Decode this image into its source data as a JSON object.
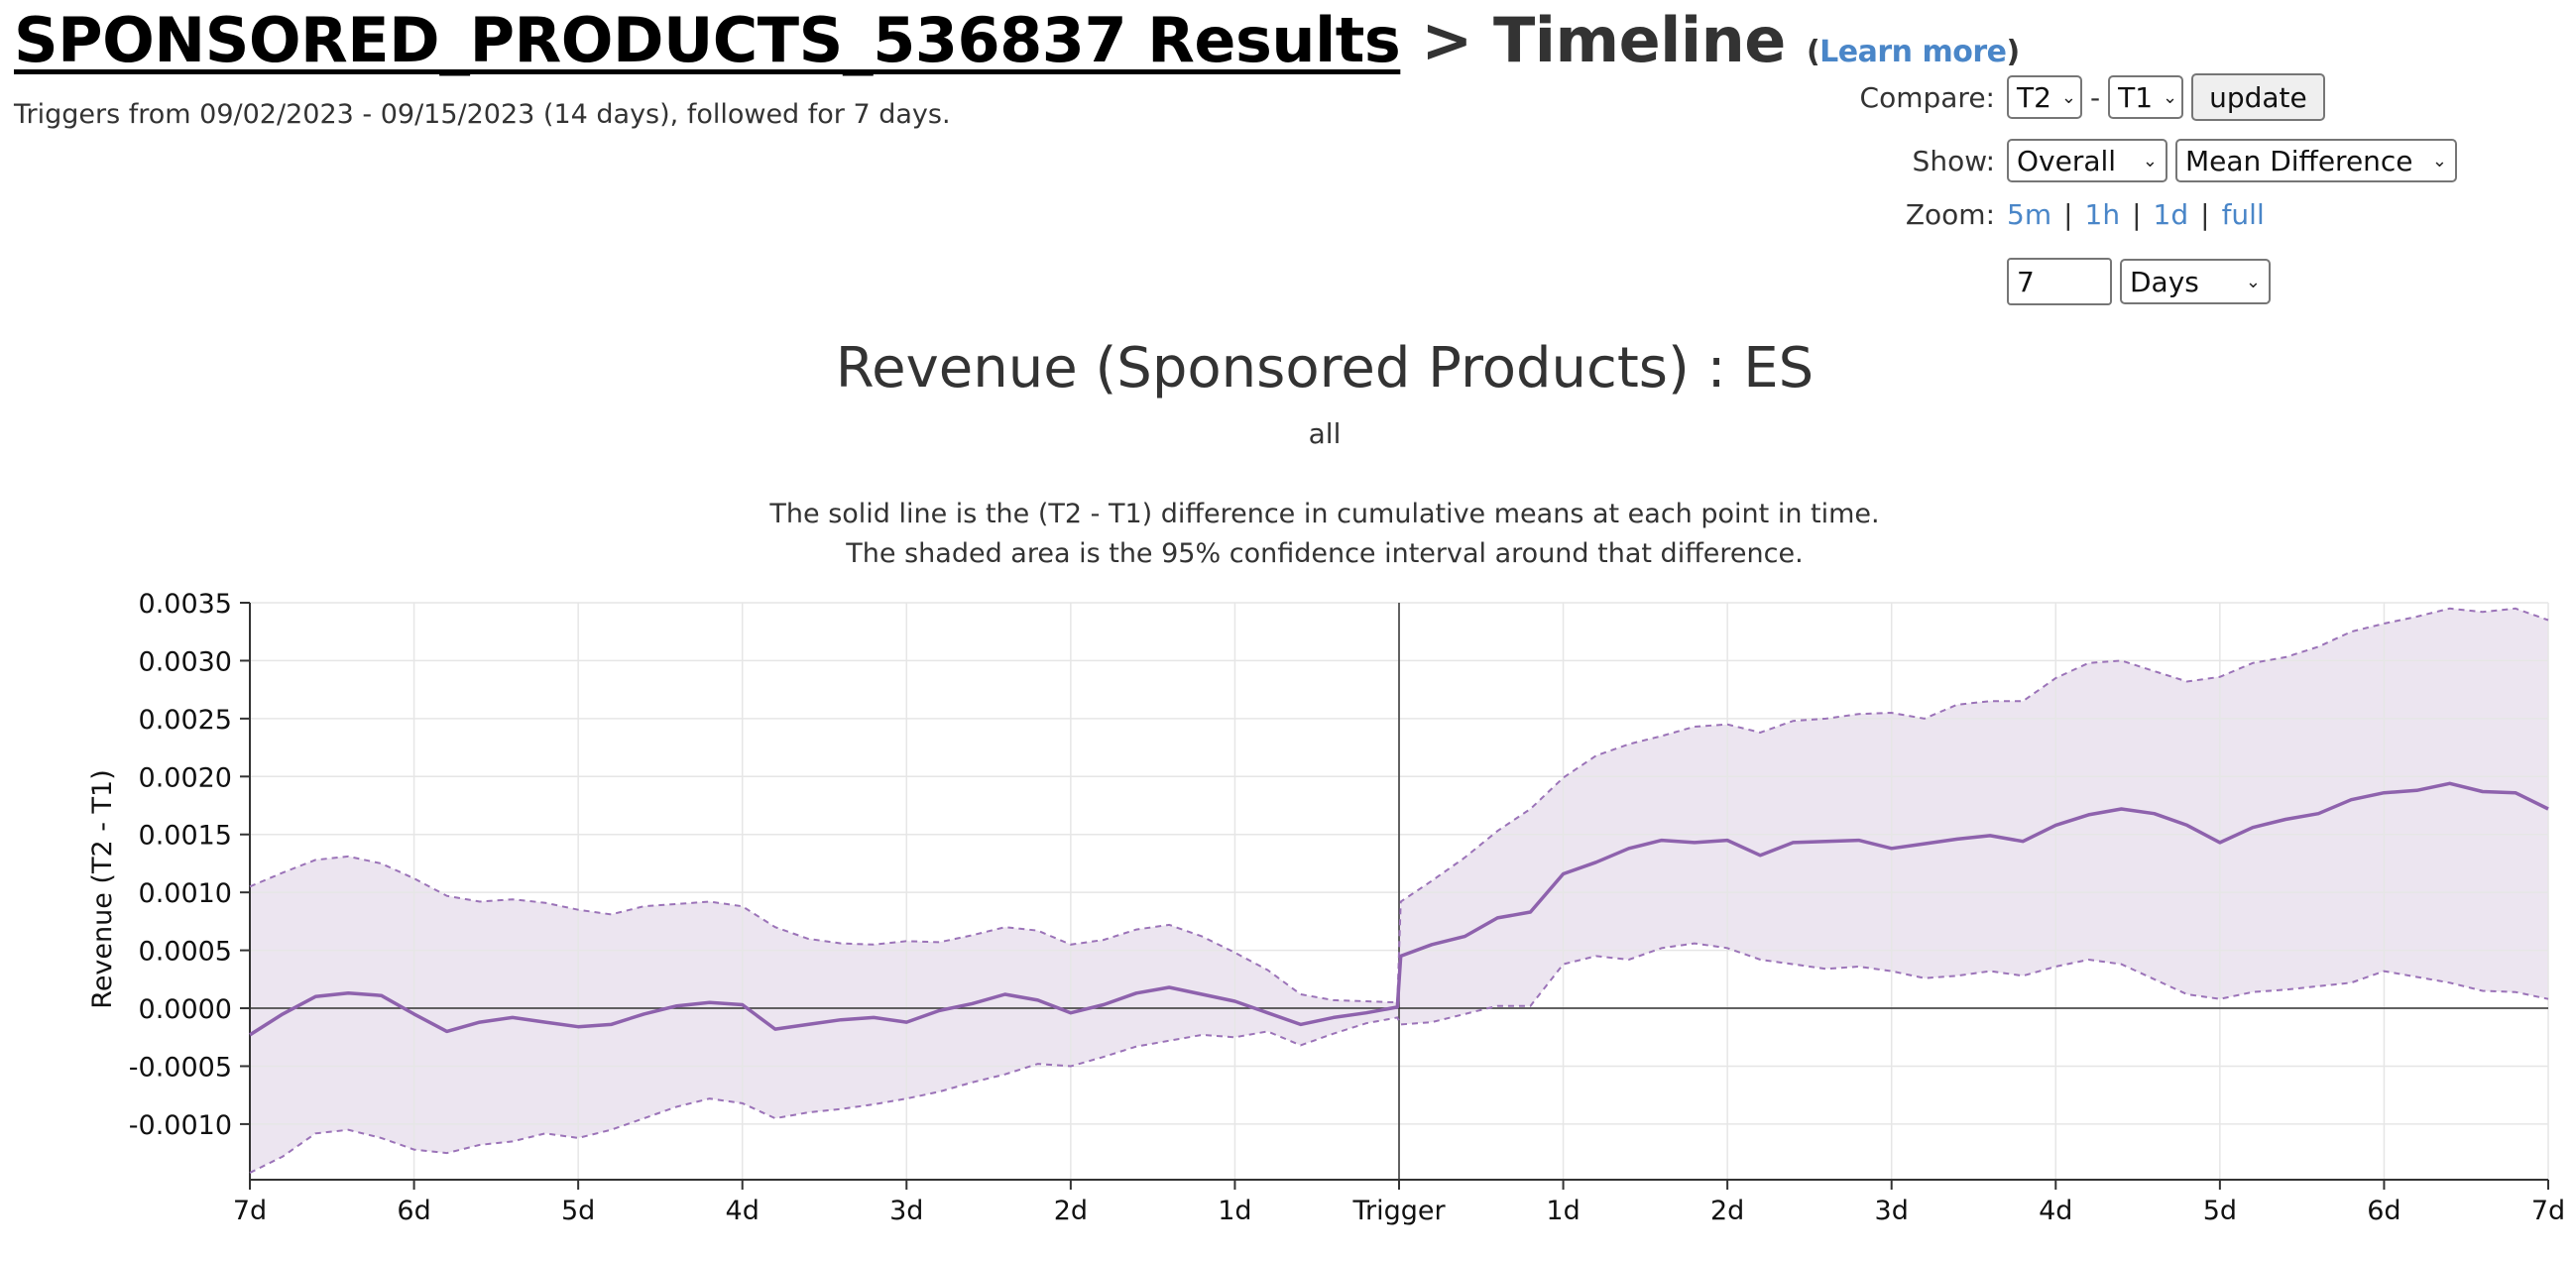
{
  "header": {
    "report_name": "SPONSORED_PRODUCTS_536837 Results",
    "separator": ">",
    "section": "Timeline",
    "learn_more_open": "(",
    "learn_more": "Learn more",
    "learn_more_close": ")",
    "subtitle": "Triggers from 09/02/2023 - 09/15/2023 (14 days), followed for 7 days."
  },
  "controls": {
    "compare_label": "Compare:",
    "compare_a": "T2",
    "compare_dash": "-",
    "compare_b": "T1",
    "update_button": "update",
    "show_label": "Show:",
    "show_scope": "Overall",
    "show_metric": "Mean Difference",
    "zoom_label": "Zoom:",
    "zoom_links": [
      "5m",
      "1h",
      "1d",
      "full"
    ],
    "zoom_sep": "|",
    "zoom_value": "7",
    "zoom_unit": "Days"
  },
  "colors": {
    "line": "#8e62ad",
    "band": "#ece5f0",
    "bound": "#9b73b8",
    "grid": "#e6e6e6",
    "axis": "#333333"
  },
  "chart_data": {
    "type": "line",
    "title": "Revenue (Sponsored Products) : ES",
    "subtitle": "all",
    "description_lines": [
      "The solid line is the (T2 - T1) difference in cumulative means at each point in time.",
      "The shaded area is the 95% confidence interval around that difference."
    ],
    "ylabel": "Revenue (T2 - T1)",
    "xlabel": "",
    "x_ticks": [
      "7d",
      "6d",
      "5d",
      "4d",
      "3d",
      "2d",
      "1d",
      "Trigger",
      "1d",
      "2d",
      "3d",
      "4d",
      "5d",
      "6d",
      "7d"
    ],
    "x_range_days": [
      -7,
      7
    ],
    "y_ticks": [
      "0.0035",
      "0.0030",
      "0.0025",
      "0.0020",
      "0.0015",
      "0.0010",
      "0.0005",
      "0.0000",
      "-0.0005",
      "-0.0010"
    ],
    "ylim": [
      -0.00148,
      0.0035
    ],
    "grid": true,
    "legend": "none",
    "series": [
      {
        "role": "mean_difference",
        "x": [
          -7,
          -6.8,
          -6.6,
          -6.4,
          -6.2,
          -6,
          -5.8,
          -5.6,
          -5.4,
          -5.2,
          -5,
          -4.8,
          -4.6,
          -4.4,
          -4.2,
          -4,
          -3.8,
          -3.6,
          -3.4,
          -3.2,
          -3,
          -2.8,
          -2.6,
          -2.4,
          -2.2,
          -2,
          -1.8,
          -1.6,
          -1.4,
          -1.2,
          -1,
          -0.8,
          -0.6,
          -0.4,
          -0.2,
          -0.01,
          0.01,
          0.2,
          0.4,
          0.6,
          0.8,
          1,
          1.2,
          1.4,
          1.6,
          1.8,
          2,
          2.2,
          2.4,
          2.6,
          2.8,
          3,
          3.2,
          3.4,
          3.6,
          3.8,
          4,
          4.2,
          4.4,
          4.6,
          4.8,
          5,
          5.2,
          5.4,
          5.6,
          5.8,
          6,
          6.2,
          6.4,
          6.6,
          6.8,
          7
        ],
        "values": [
          -0.00023,
          -5e-05,
          0.0001,
          0.00013,
          0.00011,
          -5e-05,
          -0.0002,
          -0.00012,
          -8e-05,
          -0.00012,
          -0.00016,
          -0.00014,
          -5e-05,
          2e-05,
          5e-05,
          3e-05,
          -0.00018,
          -0.00014,
          -0.0001,
          -8e-05,
          -0.00012,
          -2e-05,
          4e-05,
          0.00012,
          7e-05,
          -4e-05,
          3e-05,
          0.00013,
          0.00018,
          0.00012,
          6e-05,
          -4e-05,
          -0.00014,
          -8e-05,
          -4e-05,
          1e-05,
          0.00045,
          0.00055,
          0.00062,
          0.00078,
          0.00083,
          0.00116,
          0.00126,
          0.00138,
          0.00145,
          0.00143,
          0.00145,
          0.00132,
          0.00143,
          0.00144,
          0.00145,
          0.00138,
          0.00142,
          0.00146,
          0.00149,
          0.00144,
          0.00158,
          0.00167,
          0.00172,
          0.00168,
          0.00158,
          0.00143,
          0.00156,
          0.00163,
          0.00168,
          0.0018,
          0.00186,
          0.00188,
          0.00194,
          0.00187,
          0.00186,
          0.00172
        ]
      },
      {
        "role": "upper_95",
        "x": [
          -7,
          -6.8,
          -6.6,
          -6.4,
          -6.2,
          -6,
          -5.8,
          -5.6,
          -5.4,
          -5.2,
          -5,
          -4.8,
          -4.6,
          -4.4,
          -4.2,
          -4,
          -3.8,
          -3.6,
          -3.4,
          -3.2,
          -3,
          -2.8,
          -2.6,
          -2.4,
          -2.2,
          -2,
          -1.8,
          -1.6,
          -1.4,
          -1.2,
          -1,
          -0.8,
          -0.6,
          -0.4,
          -0.2,
          -0.01,
          0.01,
          0.2,
          0.4,
          0.6,
          0.8,
          1,
          1.2,
          1.4,
          1.6,
          1.8,
          2,
          2.2,
          2.4,
          2.6,
          2.8,
          3,
          3.2,
          3.4,
          3.6,
          3.8,
          4,
          4.2,
          4.4,
          4.6,
          4.8,
          5,
          5.2,
          5.4,
          5.6,
          5.8,
          6,
          6.2,
          6.4,
          6.6,
          6.8,
          7
        ],
        "values": [
          0.00105,
          0.00117,
          0.00128,
          0.00131,
          0.00125,
          0.00112,
          0.00097,
          0.00092,
          0.00094,
          0.00091,
          0.00085,
          0.00081,
          0.00088,
          0.0009,
          0.00092,
          0.00088,
          0.0007,
          0.0006,
          0.00056,
          0.00055,
          0.00058,
          0.00057,
          0.00063,
          0.0007,
          0.00067,
          0.00055,
          0.00059,
          0.00068,
          0.00072,
          0.00062,
          0.00048,
          0.00033,
          0.00012,
          7e-05,
          6e-05,
          5e-05,
          0.00092,
          0.0011,
          0.0013,
          0.00153,
          0.00172,
          0.00199,
          0.00218,
          0.00228,
          0.00235,
          0.00243,
          0.00245,
          0.00238,
          0.00248,
          0.0025,
          0.00254,
          0.00255,
          0.0025,
          0.00262,
          0.00265,
          0.00265,
          0.00285,
          0.00298,
          0.003,
          0.00291,
          0.00282,
          0.00286,
          0.00298,
          0.00303,
          0.00312,
          0.00325,
          0.00332,
          0.00338,
          0.00345,
          0.00342,
          0.00345,
          0.00335
        ]
      },
      {
        "role": "lower_95",
        "x": [
          -7,
          -6.8,
          -6.6,
          -6.4,
          -6.2,
          -6,
          -5.8,
          -5.6,
          -5.4,
          -5.2,
          -5,
          -4.8,
          -4.6,
          -4.4,
          -4.2,
          -4,
          -3.8,
          -3.6,
          -3.4,
          -3.2,
          -3,
          -2.8,
          -2.6,
          -2.4,
          -2.2,
          -2,
          -1.8,
          -1.6,
          -1.4,
          -1.2,
          -1,
          -0.8,
          -0.6,
          -0.4,
          -0.2,
          -0.01,
          0.01,
          0.2,
          0.4,
          0.6,
          0.8,
          1,
          1.2,
          1.4,
          1.6,
          1.8,
          2,
          2.2,
          2.4,
          2.6,
          2.8,
          3,
          3.2,
          3.4,
          3.6,
          3.8,
          4,
          4.2,
          4.4,
          4.6,
          4.8,
          5,
          5.2,
          5.4,
          5.6,
          5.8,
          6,
          6.2,
          6.4,
          6.6,
          6.8,
          7
        ],
        "values": [
          -0.00142,
          -0.00128,
          -0.00108,
          -0.00105,
          -0.00112,
          -0.00122,
          -0.00125,
          -0.00118,
          -0.00115,
          -0.00108,
          -0.00112,
          -0.00105,
          -0.00095,
          -0.00085,
          -0.00078,
          -0.00082,
          -0.00095,
          -0.0009,
          -0.00087,
          -0.00083,
          -0.00078,
          -0.00072,
          -0.00064,
          -0.00057,
          -0.00048,
          -0.0005,
          -0.00042,
          -0.00033,
          -0.00028,
          -0.00023,
          -0.00025,
          -0.0002,
          -0.00032,
          -0.00022,
          -0.00013,
          -8e-05,
          -0.00014,
          -0.00012,
          -5e-05,
          2e-05,
          2e-05,
          0.00038,
          0.00045,
          0.00042,
          0.00052,
          0.00056,
          0.00052,
          0.00042,
          0.00038,
          0.00034,
          0.00036,
          0.00032,
          0.00026,
          0.00028,
          0.00032,
          0.00028,
          0.00036,
          0.00042,
          0.00038,
          0.00025,
          0.00012,
          8e-05,
          0.00014,
          0.00016,
          0.00019,
          0.00022,
          0.00032,
          0.00027,
          0.00022,
          0.00015,
          0.00014,
          8e-05
        ]
      }
    ]
  }
}
